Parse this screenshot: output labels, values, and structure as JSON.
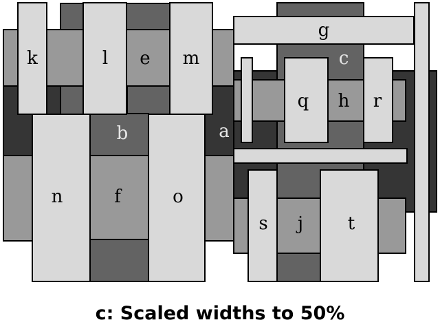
{
  "colors": {
    "stroke": "#000000",
    "lightest": "#d9d9d9",
    "light": "#999999",
    "mid": "#636363",
    "dark": "#353535",
    "text_dark": "#000000",
    "text_light": "#e6e6e6"
  },
  "labels": {
    "a": "a",
    "b": "b",
    "c": "c",
    "e": "e",
    "f": "f",
    "g": "g",
    "h": "h",
    "j": "j",
    "k": "k",
    "l": "l",
    "m": "m",
    "n": "n",
    "o": "o",
    "q": "q",
    "r": "r",
    "s": "s",
    "t": "t"
  },
  "caption": "c: Scaled widths to 50%"
}
